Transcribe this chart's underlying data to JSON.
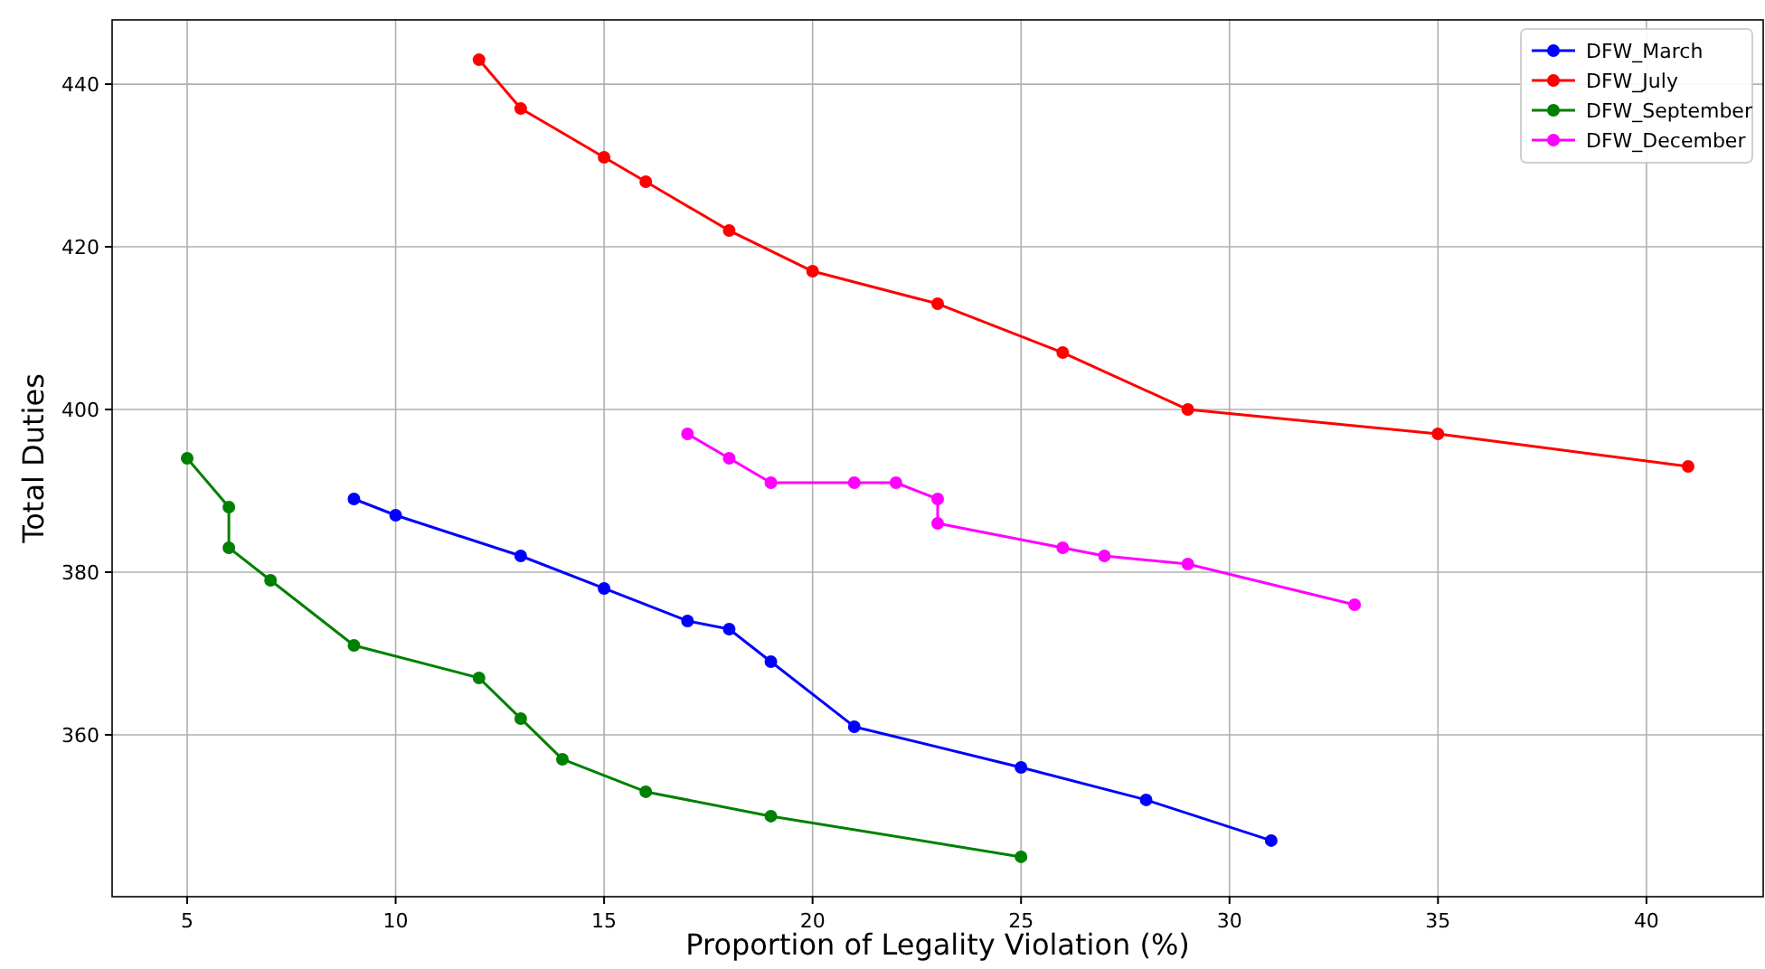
{
  "chart_data": {
    "type": "line",
    "xlabel": "Proportion of Legality Violation (%)",
    "ylabel": "Total Duties",
    "xlim": [
      3.2,
      42.8
    ],
    "xticks": [
      5,
      10,
      15,
      20,
      25,
      30,
      35,
      40
    ],
    "ylim": [
      340.1,
      447.9
    ],
    "yticks": [
      360,
      380,
      400,
      420,
      440
    ],
    "grid": true,
    "legend": "top right",
    "marker": "circle",
    "line_style": "solid",
    "series": [
      {
        "name": "DFW_March",
        "color": "#0000ff",
        "x": [
          9,
          10,
          13,
          15,
          17,
          18,
          19,
          21,
          25,
          28,
          31
        ],
        "values": [
          389,
          387,
          382,
          378,
          374,
          373,
          369,
          361,
          356,
          352,
          347
        ]
      },
      {
        "name": "DFW_July",
        "color": "#ff0000",
        "x": [
          12,
          13,
          15,
          16,
          18,
          20,
          23,
          26,
          29,
          35,
          41
        ],
        "values": [
          443,
          437,
          431,
          428,
          422,
          417,
          413,
          407,
          400,
          397,
          393
        ]
      },
      {
        "name": "DFW_September",
        "color": "#008000",
        "x": [
          5,
          6,
          6,
          7,
          9,
          12,
          13,
          14,
          16,
          19,
          25
        ],
        "values": [
          394,
          388,
          383,
          379,
          371,
          367,
          362,
          357,
          353,
          350,
          345
        ]
      },
      {
        "name": "DFW_December",
        "color": "#ff00ff",
        "x": [
          17,
          18,
          19,
          21,
          22,
          23,
          23,
          26,
          27,
          29,
          33
        ],
        "values": [
          397,
          394,
          391,
          391,
          391,
          389,
          386,
          383,
          382,
          381,
          376
        ]
      }
    ]
  }
}
